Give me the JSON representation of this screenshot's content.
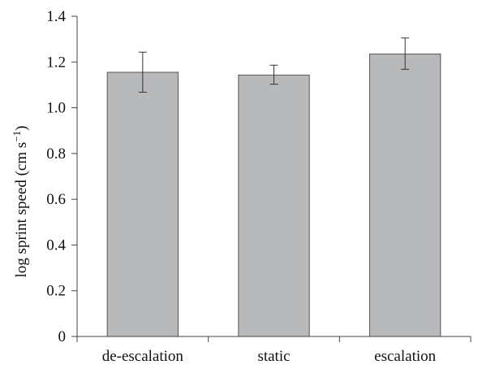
{
  "chart_data": {
    "type": "bar",
    "categories": [
      "de-escalation",
      "static",
      "escalation"
    ],
    "values": [
      1.155,
      1.143,
      1.235
    ],
    "error_low": [
      1.068,
      1.103,
      1.168
    ],
    "error_high": [
      1.243,
      1.186,
      1.305
    ],
    "title": "",
    "xlabel": "",
    "ylabel": "log sprint speed (cm s",
    "ylabel_unit_exponent": "−1",
    "ylabel_close": ")",
    "ylim": [
      0,
      1.4
    ],
    "yticks": [
      "0",
      "0.2",
      "0.4",
      "0.6",
      "0.8",
      "1.0",
      "1.2",
      "1.4"
    ],
    "ytick_values": [
      0,
      0.2,
      0.4,
      0.6,
      0.8,
      1.0,
      1.2,
      1.4
    ],
    "grid": false,
    "bar_color": "#b8b9bb",
    "bar_edge_color": "#555555"
  }
}
